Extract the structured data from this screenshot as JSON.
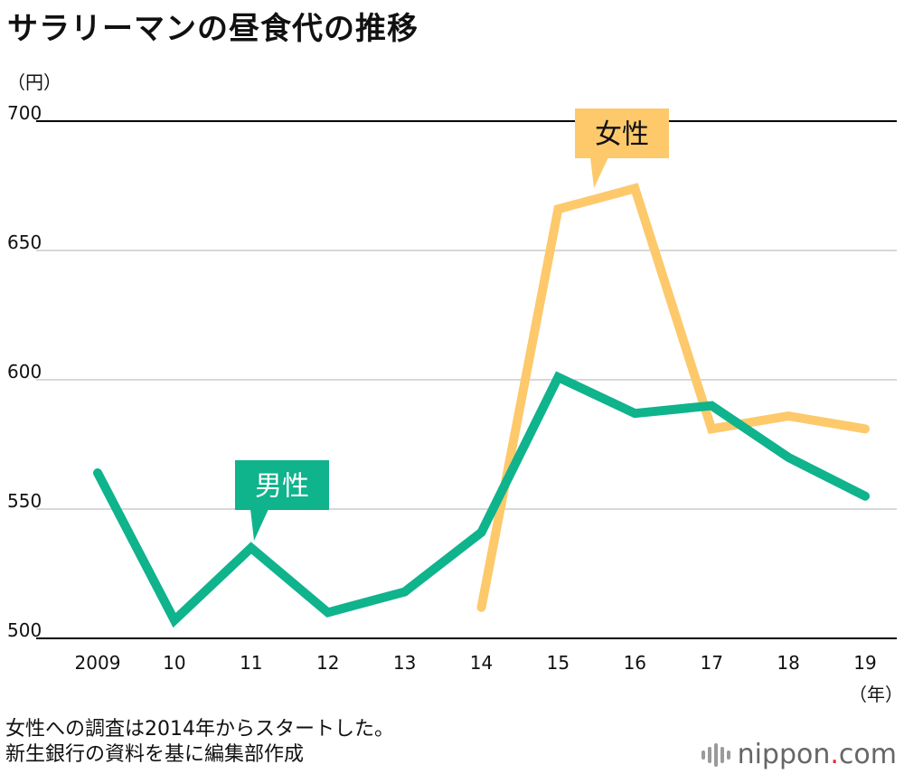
{
  "title": "サラリーマンの昼食代の推移",
  "notes": [
    "女性への調査は2014年からスタートした。",
    "新生銀行の資料を基に編集部作成"
  ],
  "logo": {
    "name": "nippon",
    "dot": ".",
    "suffix": "com"
  },
  "chart_data": {
    "type": "line",
    "title": "サラリーマンの昼食代の推移",
    "ylabel": "（円）",
    "xlabel": "（年）",
    "categories": [
      "2009",
      "10",
      "11",
      "12",
      "13",
      "14",
      "15",
      "16",
      "17",
      "18",
      "19"
    ],
    "ylim": [
      500,
      700
    ],
    "yticks": [
      500,
      550,
      600,
      650,
      700
    ],
    "series": [
      {
        "name": "男性",
        "color": "#0fb38c",
        "values": [
          564,
          507,
          535,
          510,
          518,
          541,
          601,
          587,
          590,
          570,
          555
        ]
      },
      {
        "name": "女性",
        "color": "#fdc96b",
        "values": [
          null,
          null,
          null,
          null,
          null,
          512,
          666,
          674,
          581,
          586,
          581
        ]
      }
    ],
    "grid": true,
    "colors": {
      "male": "#0fb38c",
      "female": "#fdc96b",
      "grid": "#cccccc",
      "axis": "#000000"
    }
  }
}
